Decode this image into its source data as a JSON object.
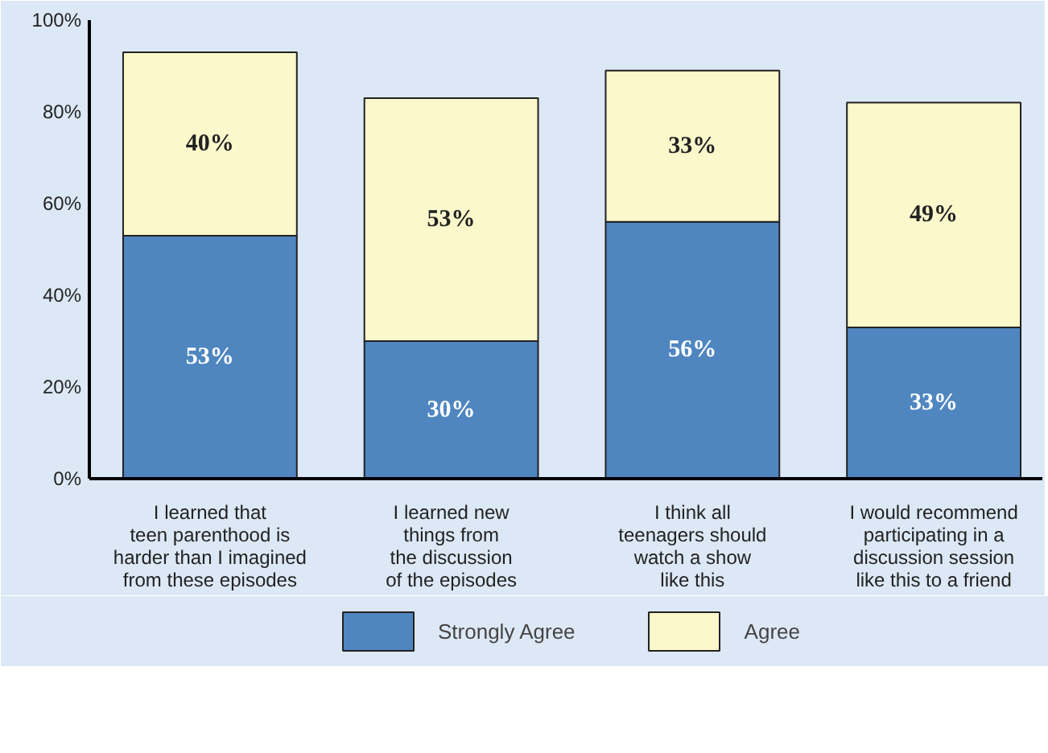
{
  "chart_data": {
    "type": "bar",
    "stacked": true,
    "categories": [
      "I learned that\nteen parenthood is\nharder than I imagined\nfrom these episodes",
      "I learned new\nthings from\nthe discussion\nof the episodes",
      "I think all\nteenagers should\nwatch a show\nlike this",
      "I would recommend\nparticipating in a\ndiscussion session\nlike this to a friend"
    ],
    "series": [
      {
        "name": "Strongly Agree",
        "color": "#4f86c0",
        "values": [
          53,
          30,
          56,
          33
        ],
        "value_labels": [
          "53%",
          "30%",
          "56%",
          "33%"
        ]
      },
      {
        "name": "Agree",
        "color": "#fbf8cc",
        "values": [
          40,
          53,
          33,
          49
        ],
        "value_labels": [
          "40%",
          "53%",
          "33%",
          "49%"
        ]
      }
    ],
    "ylim": [
      0,
      100
    ],
    "yticks": [
      {
        "value": 0,
        "label": "0%"
      },
      {
        "value": 20,
        "label": "20%"
      },
      {
        "value": 40,
        "label": "40%"
      },
      {
        "value": 60,
        "label": "60%"
      },
      {
        "value": 80,
        "label": "80%"
      },
      {
        "value": 100,
        "label": "100%"
      }
    ],
    "grid": false,
    "legend": "bottom"
  }
}
